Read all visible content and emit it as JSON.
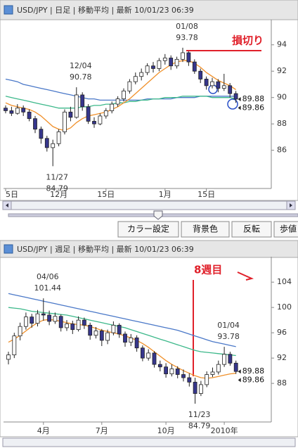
{
  "chart_data": [
    {
      "type": "candlestick",
      "title": "USD/JPY | 日足 | 移動平均 | 最新 10/01/23 06:39",
      "categories": [
        "5日",
        null,
        null,
        null,
        null,
        null,
        null,
        null,
        null,
        "12月",
        null,
        null,
        null,
        null,
        null,
        null,
        null,
        "15日",
        null,
        null,
        null,
        null,
        null,
        null,
        null,
        null,
        null,
        "1月",
        null,
        null,
        null,
        null,
        null,
        null,
        "15日",
        null,
        null,
        null,
        null,
        null
      ],
      "ohlc": [
        [
          89.2,
          89.4,
          88.8,
          89.0
        ],
        [
          89.0,
          89.3,
          88.6,
          88.8
        ],
        [
          88.8,
          89.5,
          88.7,
          89.2
        ],
        [
          89.2,
          89.4,
          88.6,
          88.9
        ],
        [
          88.9,
          89.1,
          88.2,
          88.4
        ],
        [
          88.4,
          88.6,
          87.3,
          87.6
        ],
        [
          87.6,
          87.8,
          86.5,
          86.9
        ],
        [
          86.9,
          87.1,
          85.9,
          86.2
        ],
        [
          86.2,
          86.8,
          84.79,
          86.5
        ],
        [
          86.5,
          87.6,
          86.3,
          87.4
        ],
        [
          87.4,
          89.1,
          87.2,
          88.9
        ],
        [
          88.9,
          89.3,
          88.2,
          88.5
        ],
        [
          88.5,
          90.78,
          88.4,
          90.2
        ],
        [
          90.2,
          90.4,
          89.0,
          89.3
        ],
        [
          89.3,
          89.5,
          88.0,
          88.2
        ],
        [
          88.2,
          88.5,
          87.7,
          88.0
        ],
        [
          88.0,
          88.8,
          87.9,
          88.6
        ],
        [
          88.6,
          89.2,
          88.4,
          89.0
        ],
        [
          89.0,
          89.7,
          88.8,
          89.5
        ],
        [
          89.5,
          90.1,
          89.3,
          89.9
        ],
        [
          89.9,
          90.7,
          89.7,
          90.5
        ],
        [
          90.5,
          91.4,
          90.3,
          91.2
        ],
        [
          91.2,
          91.9,
          91.0,
          91.6
        ],
        [
          91.6,
          92.2,
          91.3,
          91.9
        ],
        [
          91.9,
          92.6,
          91.7,
          92.4
        ],
        [
          92.4,
          92.7,
          91.9,
          92.2
        ],
        [
          92.2,
          93.0,
          92.0,
          92.8
        ],
        [
          92.8,
          93.3,
          92.5,
          93.0
        ],
        [
          93.0,
          93.2,
          92.1,
          92.4
        ],
        [
          92.4,
          93.1,
          92.2,
          92.9
        ],
        [
          92.9,
          93.78,
          92.7,
          93.4
        ],
        [
          93.4,
          93.5,
          92.4,
          92.7
        ],
        [
          92.7,
          92.9,
          91.8,
          92.0
        ],
        [
          92.0,
          92.2,
          91.1,
          91.4
        ],
        [
          91.4,
          91.6,
          90.6,
          90.9
        ],
        [
          90.9,
          91.5,
          90.7,
          91.2
        ],
        [
          91.2,
          91.4,
          90.4,
          90.7
        ],
        [
          90.7,
          91.8,
          90.5,
          90.9
        ],
        [
          90.9,
          91.1,
          90.0,
          90.3
        ],
        [
          90.3,
          90.5,
          89.6,
          89.88
        ]
      ],
      "up_color": "#ffffff",
      "down_color": "#36368c",
      "series": [
        {
          "color": "#4a78c8",
          "values": [
            91.4,
            91.3,
            91.2,
            91.0,
            90.9,
            90.8,
            90.7,
            90.6,
            90.5,
            90.4,
            90.3,
            90.2,
            90.1,
            90.0,
            89.9,
            89.9,
            89.8,
            89.8,
            89.8,
            89.8,
            89.8,
            89.8,
            89.8,
            89.8,
            89.9,
            89.9,
            89.9,
            89.9,
            89.9,
            90.0,
            90.0,
            90.0,
            90.0,
            90.1,
            90.1,
            90.1,
            90.1,
            90.1,
            90.1,
            90.1
          ]
        },
        {
          "color": "#3cb88a",
          "values": [
            90.1,
            90.0,
            89.9,
            89.8,
            89.7,
            89.6,
            89.5,
            89.4,
            89.3,
            89.2,
            89.2,
            89.2,
            89.2,
            89.3,
            89.3,
            89.4,
            89.4,
            89.5,
            89.5,
            89.6,
            89.6,
            89.7,
            89.7,
            89.8,
            89.8,
            89.9,
            89.9,
            90.0,
            90.0,
            90.0,
            90.1,
            90.1,
            90.1,
            90.1,
            90.1,
            90.0,
            90.0,
            90.0,
            90.0,
            89.9
          ]
        },
        {
          "color": "#f0902a",
          "values": [
            89.6,
            89.4,
            89.3,
            89.2,
            89.1,
            88.9,
            88.6,
            88.2,
            87.8,
            87.6,
            87.5,
            87.7,
            88.1,
            88.4,
            88.6,
            88.7,
            88.8,
            88.9,
            89.1,
            89.3,
            89.6,
            89.9,
            90.3,
            90.7,
            91.1,
            91.5,
            91.9,
            92.2,
            92.5,
            92.7,
            92.8,
            92.8,
            92.6,
            92.3,
            91.9,
            91.6,
            91.3,
            91.1,
            90.9,
            90.6
          ]
        }
      ],
      "ylim": [
        83.1,
        95.8
      ],
      "yticks": [
        86,
        88,
        90,
        92,
        94
      ],
      "grid": false,
      "annotations": [
        {
          "date": "12/04",
          "value": 90.78
        },
        {
          "date": "11/27",
          "value": 84.79
        },
        {
          "date": "01/08",
          "value": 93.78
        }
      ],
      "last_prices": [
        89.88,
        89.86
      ],
      "note": "損切り"
    },
    {
      "type": "candlestick",
      "title": "USD/JPY | 週足 | 移動平均 | 最新 10/01/23 06:39",
      "categories": [
        null,
        null,
        null,
        null,
        null,
        null,
        "4月",
        null,
        null,
        null,
        null,
        null,
        null,
        null,
        null,
        null,
        "7月",
        null,
        null,
        null,
        null,
        null,
        null,
        null,
        null,
        null,
        null,
        "10月",
        null,
        null,
        null,
        null,
        null,
        null,
        null,
        null,
        null,
        "2010年",
        null,
        null
      ],
      "ohlc": [
        [
          91.8,
          93.0,
          91.0,
          92.5
        ],
        [
          92.5,
          96.0,
          92.0,
          95.5
        ],
        [
          95.5,
          97.6,
          94.8,
          97.0
        ],
        [
          97.0,
          99.2,
          96.5,
          98.5
        ],
        [
          98.5,
          99.0,
          96.8,
          97.5
        ],
        [
          97.5,
          99.6,
          97.0,
          99.0
        ],
        [
          99.0,
          101.44,
          97.9,
          98.8
        ],
        [
          98.8,
          99.5,
          97.2,
          97.8
        ],
        [
          97.8,
          99.2,
          97.4,
          98.6
        ],
        [
          98.6,
          98.9,
          96.2,
          96.8
        ],
        [
          96.8,
          98.0,
          96.3,
          97.4
        ],
        [
          97.4,
          97.9,
          95.8,
          96.5
        ],
        [
          96.5,
          98.6,
          96.2,
          98.0
        ],
        [
          98.0,
          98.4,
          96.6,
          97.2
        ],
        [
          97.2,
          97.6,
          94.9,
          95.6
        ],
        [
          95.6,
          96.9,
          95.1,
          96.3
        ],
        [
          96.3,
          96.6,
          93.9,
          94.8
        ],
        [
          94.8,
          96.5,
          94.2,
          96.0
        ],
        [
          96.0,
          97.8,
          95.6,
          97.2
        ],
        [
          97.2,
          97.5,
          95.2,
          95.8
        ],
        [
          95.8,
          96.2,
          93.8,
          94.5
        ],
        [
          94.5,
          95.8,
          93.9,
          95.2
        ],
        [
          95.2,
          95.6,
          93.0,
          93.6
        ],
        [
          93.6,
          94.0,
          91.5,
          92.0
        ],
        [
          92.0,
          93.4,
          91.6,
          92.8
        ],
        [
          92.8,
          93.1,
          90.5,
          91.0
        ],
        [
          91.0,
          91.6,
          89.9,
          90.6
        ],
        [
          90.6,
          91.2,
          88.9,
          89.5
        ],
        [
          89.5,
          91.0,
          89.1,
          90.3
        ],
        [
          90.3,
          90.7,
          88.8,
          89.4
        ],
        [
          89.4,
          90.2,
          88.3,
          88.9
        ],
        [
          88.9,
          89.6,
          87.5,
          88.2
        ],
        [
          88.2,
          88.9,
          84.79,
          86.4
        ],
        [
          86.4,
          88.4,
          86.0,
          87.8
        ],
        [
          87.8,
          89.9,
          87.4,
          89.4
        ],
        [
          89.4,
          90.5,
          89.0,
          89.8
        ],
        [
          89.8,
          91.6,
          89.4,
          91.0
        ],
        [
          91.0,
          93.78,
          90.6,
          92.6
        ],
        [
          92.6,
          93.0,
          90.8,
          91.2
        ],
        [
          91.2,
          91.6,
          89.5,
          89.88
        ]
      ],
      "up_color": "#ffffff",
      "down_color": "#36368c",
      "series": [
        {
          "color": "#4a78c8",
          "values": [
            102.2,
            102.0,
            101.8,
            101.6,
            101.4,
            101.2,
            101.0,
            100.8,
            100.6,
            100.4,
            100.2,
            100.0,
            99.8,
            99.6,
            99.4,
            99.2,
            99.0,
            98.8,
            98.6,
            98.4,
            98.2,
            98.0,
            97.8,
            97.6,
            97.4,
            97.2,
            97.0,
            96.8,
            96.6,
            96.4,
            96.1,
            95.8,
            95.5,
            95.2,
            94.9,
            94.6,
            94.4,
            94.2,
            94.0,
            93.8
          ]
        },
        {
          "color": "#3cb88a",
          "values": [
            100.0,
            99.9,
            99.8,
            99.6,
            99.4,
            99.3,
            99.2,
            99.1,
            99.0,
            98.9,
            98.8,
            98.6,
            98.4,
            98.2,
            98.0,
            97.8,
            97.6,
            97.4,
            97.2,
            97.0,
            96.8,
            96.5,
            96.2,
            95.9,
            95.6,
            95.3,
            95.0,
            94.7,
            94.4,
            94.1,
            93.8,
            93.5,
            93.2,
            93.0,
            92.9,
            92.8,
            92.7,
            92.6,
            92.5,
            92.4
          ]
        },
        {
          "color": "#f0902a",
          "values": [
            94.5,
            95.0,
            95.6,
            96.3,
            97.0,
            97.6,
            98.0,
            98.1,
            98.0,
            97.8,
            97.6,
            97.4,
            97.3,
            97.2,
            97.0,
            96.7,
            96.4,
            96.2,
            96.0,
            95.8,
            95.5,
            95.2,
            94.8,
            94.3,
            93.7,
            93.0,
            92.3,
            91.6,
            91.0,
            90.5,
            90.0,
            89.6,
            89.2,
            88.9,
            88.8,
            88.9,
            89.1,
            89.3,
            89.5,
            89.6
          ]
        }
      ],
      "ylim": [
        81.9,
        107.8
      ],
      "yticks": [
        88,
        92,
        96,
        100,
        104
      ],
      "grid": false,
      "annotations": [
        {
          "date": "04/06",
          "value": 101.44
        },
        {
          "date": "11/23",
          "value": 84.79
        },
        {
          "date": "01/04",
          "value": 93.78
        }
      ],
      "last_prices": [
        89.88,
        89.86
      ],
      "note": "8週目"
    }
  ],
  "ui": {
    "buttons": [
      "カラー設定",
      "背景色",
      "反転",
      "歩値"
    ]
  }
}
